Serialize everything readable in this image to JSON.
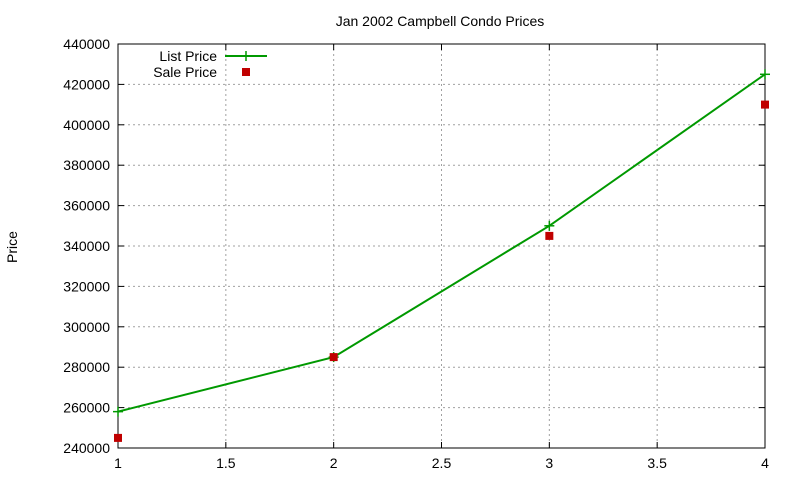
{
  "chart_data": {
    "type": "line",
    "title": "Jan 2002 Campbell Condo Prices",
    "xlabel": "",
    "ylabel": "Price",
    "xlim": [
      1,
      4
    ],
    "ylim": [
      240000,
      440000
    ],
    "xticks": [
      1,
      1.5,
      2,
      2.5,
      3,
      3.5,
      4
    ],
    "xtick_labels": [
      "1",
      "1.5",
      "2",
      "2.5",
      "3",
      "3.5",
      "4"
    ],
    "yticks": [
      240000,
      260000,
      280000,
      300000,
      320000,
      340000,
      360000,
      380000,
      400000,
      420000,
      440000
    ],
    "ytick_labels": [
      "240000",
      "260000",
      "280000",
      "300000",
      "320000",
      "340000",
      "360000",
      "380000",
      "400000",
      "420000",
      "440000"
    ],
    "grid": true,
    "legend_position": "top-left",
    "series": [
      {
        "name": "List Price",
        "style": "linespoints",
        "marker": "plus",
        "color": "#009900",
        "x": [
          1,
          2,
          3,
          4
        ],
        "values": [
          258000,
          285000,
          350000,
          425000
        ]
      },
      {
        "name": "Sale Price",
        "style": "points",
        "marker": "square",
        "color": "#c00000",
        "x": [
          1,
          2,
          3,
          4
        ],
        "values": [
          245000,
          285000,
          345000,
          410000
        ]
      }
    ]
  }
}
